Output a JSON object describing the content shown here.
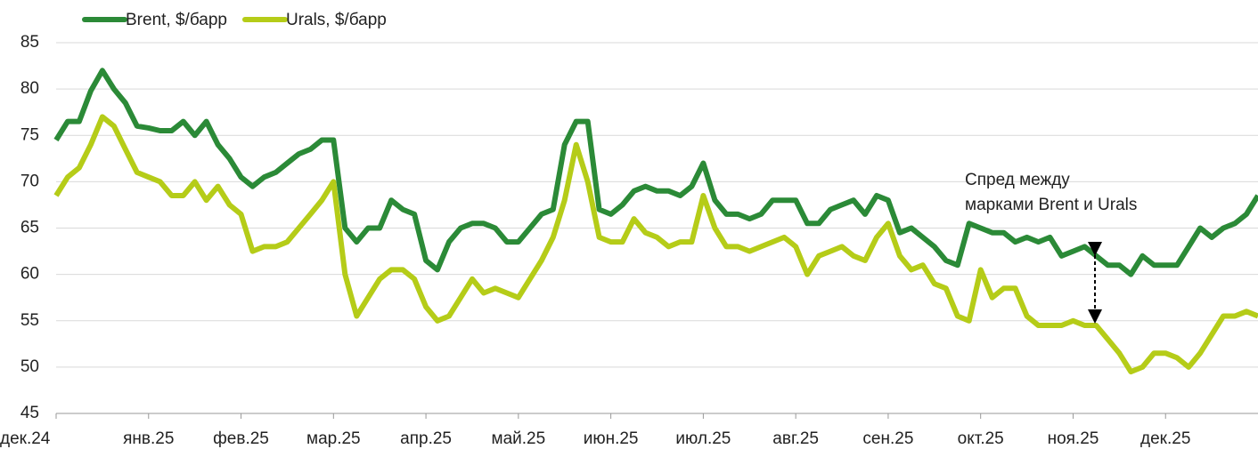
{
  "chart_data": {
    "type": "line",
    "categories": [
      "дек.24",
      null,
      null,
      null,
      null,
      null,
      null,
      null,
      "янв.25",
      null,
      null,
      null,
      null,
      null,
      null,
      null,
      "фев.25",
      null,
      null,
      null,
      null,
      null,
      null,
      null,
      "мар.25",
      null,
      null,
      null,
      null,
      null,
      null,
      null,
      "апр.25",
      null,
      null,
      null,
      null,
      null,
      null,
      null,
      "май.25",
      null,
      null,
      null,
      null,
      null,
      null,
      null,
      "июн.25",
      null,
      null,
      null,
      null,
      null,
      null,
      null,
      "июл.25",
      null,
      null,
      null,
      null,
      null,
      null,
      null,
      "авг.25",
      null,
      null,
      null,
      null,
      null,
      null,
      null,
      "сен.25",
      null,
      null,
      null,
      null,
      null,
      null,
      null,
      "окт.25",
      null,
      null,
      null,
      null,
      null,
      null,
      null,
      "ноя.25",
      null,
      null,
      null,
      null,
      null,
      null,
      null,
      "дек.25",
      null,
      null,
      null,
      null,
      null,
      null,
      null,
      null
    ],
    "series": [
      {
        "name": "Brent, $/барр",
        "color": "#2b8a37",
        "values": [
          74.5,
          76.5,
          76.5,
          79.8,
          82,
          80,
          78.5,
          76,
          75.8,
          75.5,
          75.5,
          76.5,
          75,
          76.5,
          74,
          72.5,
          70.5,
          69.5,
          70.5,
          71,
          72,
          73,
          73.5,
          74.5,
          74.5,
          65,
          63.5,
          65,
          65,
          68,
          67,
          66.5,
          61.5,
          60.5,
          63.5,
          65,
          65.5,
          65.5,
          65,
          63.5,
          63.5,
          65,
          66.5,
          67,
          74,
          76.5,
          76.5,
          67,
          66.5,
          67.5,
          69,
          69.5,
          69,
          69,
          68.5,
          69.5,
          72,
          68,
          66.5,
          66.5,
          66,
          66.5,
          68,
          68,
          68,
          65.5,
          65.5,
          67,
          67.5,
          68,
          66.5,
          68.5,
          68,
          64.5,
          65,
          64,
          63,
          61.5,
          61,
          65.5,
          65,
          64.5,
          64.5,
          63.5,
          64,
          63.5,
          64,
          62,
          62.5,
          63,
          62,
          61,
          61,
          60,
          62,
          61,
          61,
          61,
          63,
          65,
          64,
          65,
          65.5,
          66.5,
          68.5
        ]
      },
      {
        "name": "Urals, $/барр",
        "color": "#b5cc18",
        "values": [
          68.5,
          70.5,
          71.5,
          74,
          77,
          76,
          73.5,
          71,
          70.5,
          70,
          68.5,
          68.5,
          70,
          68,
          69.5,
          67.5,
          66.5,
          62.5,
          63,
          63,
          63.5,
          65,
          66.5,
          68,
          70,
          60,
          55.5,
          57.5,
          59.5,
          60.5,
          60.5,
          59.5,
          56.5,
          55,
          55.5,
          57.5,
          59.5,
          58,
          58.5,
          58,
          57.5,
          59.5,
          61.5,
          64,
          68,
          74,
          70,
          64,
          63.5,
          63.5,
          66,
          64.5,
          64,
          63,
          63.5,
          63.5,
          68.5,
          65,
          63,
          63,
          62.5,
          63,
          63.5,
          64,
          63,
          60,
          62,
          62.5,
          63,
          62,
          61.5,
          64,
          65.5,
          62,
          60.5,
          61,
          59,
          58.5,
          55.5,
          55,
          60.5,
          57.5,
          58.5,
          58.5,
          55.5,
          54.5,
          54.5,
          54.5,
          55,
          54.5,
          54.5,
          53,
          51.5,
          49.5,
          50,
          51.5,
          51.5,
          51,
          50,
          51.5,
          53.5,
          55.5,
          55.5,
          56,
          55.5
        ]
      }
    ],
    "annotation": [
      "Спред между",
      "марками Brent и Urals"
    ],
    "ylim": [
      45,
      85
    ],
    "yticks": [
      45,
      50,
      55,
      60,
      65,
      70,
      75,
      80,
      85
    ],
    "grid": true,
    "legend": "top-left"
  }
}
